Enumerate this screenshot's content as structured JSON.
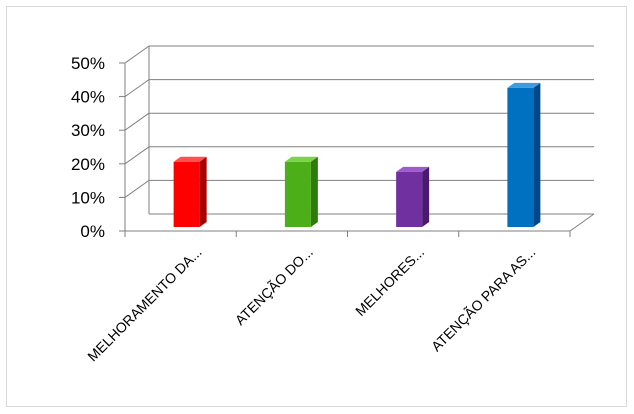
{
  "chart_data": {
    "type": "bar",
    "style": "3d-column",
    "categories": [
      "MELHORAMENTO DA...",
      "ATENÇÃO DO...",
      "MELHORES...",
      "ATENÇÃO PARA AS..."
    ],
    "values": [
      20,
      20,
      17,
      42
    ],
    "unit": "%",
    "ylim": [
      0,
      50
    ],
    "yticks": [
      "0%",
      "10%",
      "20%",
      "30%",
      "40%",
      "50%"
    ],
    "grid": true,
    "legend": "none",
    "colors": [
      "#ff0000",
      "#4caf1a",
      "#7030a0",
      "#0070c0"
    ],
    "side_colors": [
      "#a80000",
      "#2f7a0c",
      "#4a1a70",
      "#00488a"
    ],
    "top_colors": [
      "#ff5050",
      "#7dd34a",
      "#9d5cc9",
      "#3d9be0"
    ],
    "grid_color": "#7f7f7f"
  }
}
